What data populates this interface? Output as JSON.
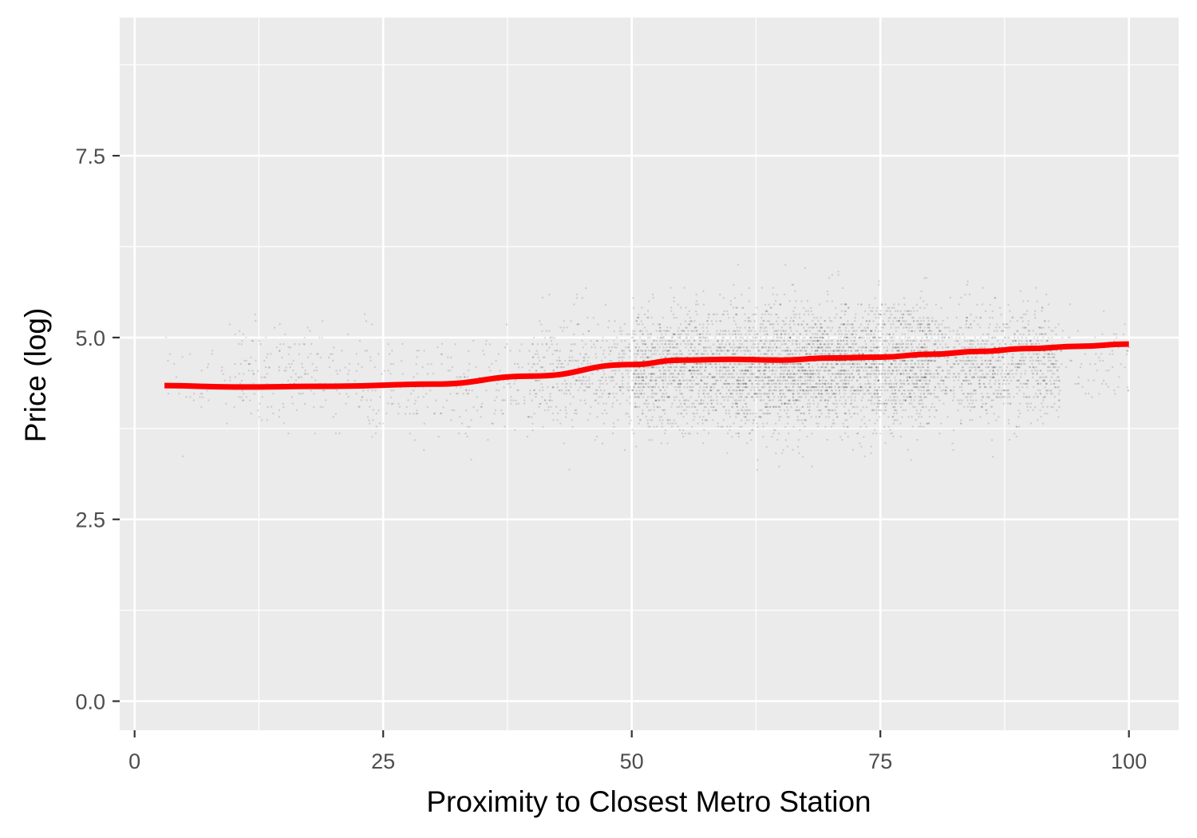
{
  "chart_data": {
    "type": "scatter",
    "title": "",
    "xlabel": "Proximity to Closest Metro Station",
    "ylabel": "Price (log)",
    "xlim": [
      -1.5,
      105
    ],
    "ylim": [
      -0.4,
      9.4
    ],
    "x_ticks": [
      0,
      25,
      50,
      75,
      100
    ],
    "x_tick_labels": [
      "0",
      "25",
      "50",
      "75",
      "100"
    ],
    "y_ticks": [
      0.0,
      2.5,
      5.0,
      7.5
    ],
    "y_tick_labels": [
      "0.0",
      "2.5",
      "5.0",
      "7.5"
    ],
    "grid": true,
    "legend": "none",
    "colors": {
      "panel": "#ebebeb",
      "grid": "#ffffff",
      "points": "#000000",
      "trend": "#ff0000"
    },
    "point_cloud_density": [
      {
        "x": [
          3,
          10
        ],
        "y_center": 4.4,
        "y_spread": 0.45,
        "relative_density": 0.04
      },
      {
        "x": [
          10,
          20
        ],
        "y_center": 4.5,
        "y_spread": 0.5,
        "relative_density": 0.12
      },
      {
        "x": [
          20,
          40
        ],
        "y_center": 4.35,
        "y_spread": 0.5,
        "relative_density": 0.1
      },
      {
        "x": [
          40,
          50
        ],
        "y_center": 4.5,
        "y_spread": 0.55,
        "relative_density": 0.3
      },
      {
        "x": [
          50,
          60
        ],
        "y_center": 4.6,
        "y_spread": 0.6,
        "relative_density": 0.8
      },
      {
        "x": [
          60,
          80
        ],
        "y_center": 4.6,
        "y_spread": 0.6,
        "relative_density": 1.0
      },
      {
        "x": [
          80,
          93
        ],
        "y_center": 4.65,
        "y_spread": 0.55,
        "relative_density": 0.55
      },
      {
        "x": [
          93,
          100
        ],
        "y_center": 4.75,
        "y_spread": 0.5,
        "relative_density": 0.08
      }
    ],
    "series": [
      {
        "type": "line",
        "x": [
          3,
          10,
          20,
          30,
          40,
          50,
          55,
          60,
          65,
          70,
          75,
          80,
          85,
          90,
          95,
          100
        ],
        "values": [
          4.34,
          4.32,
          4.33,
          4.36,
          4.47,
          4.63,
          4.69,
          4.7,
          4.69,
          4.72,
          4.73,
          4.77,
          4.81,
          4.85,
          4.88,
          4.91
        ]
      }
    ]
  }
}
